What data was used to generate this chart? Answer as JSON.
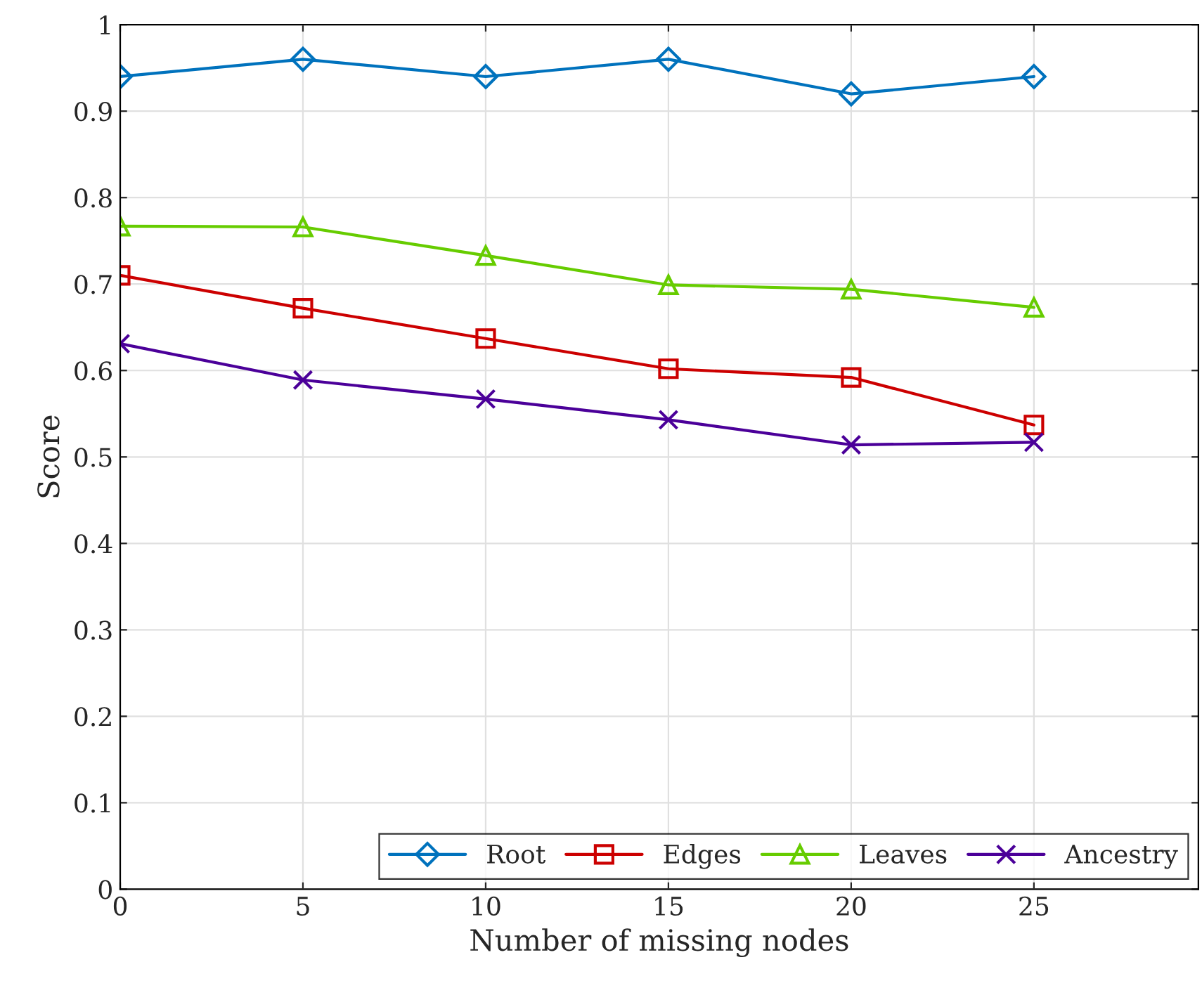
{
  "chart_data": {
    "type": "line",
    "xlabel": "Number of missing nodes",
    "ylabel": "Score",
    "x": [
      0,
      5,
      10,
      15,
      20,
      25
    ],
    "series": [
      {
        "name": "Root",
        "color": "#0072bd",
        "marker": "diamond",
        "values": [
          0.94,
          0.96,
          0.94,
          0.96,
          0.92,
          0.94
        ]
      },
      {
        "name": "Edges",
        "color": "#cc0000",
        "marker": "square",
        "values": [
          0.71,
          0.672,
          0.637,
          0.602,
          0.592,
          0.537
        ]
      },
      {
        "name": "Leaves",
        "color": "#66cc00",
        "marker": "triangle",
        "values": [
          0.767,
          0.766,
          0.733,
          0.699,
          0.694,
          0.673
        ]
      },
      {
        "name": "Ancestry",
        "color": "#4b0099",
        "marker": "cross",
        "values": [
          0.631,
          0.589,
          0.567,
          0.543,
          0.514,
          0.517
        ]
      }
    ],
    "xlim": [
      0,
      29.5
    ],
    "xticks": [
      0,
      5,
      10,
      15,
      20,
      25
    ],
    "ylim": [
      0,
      1
    ],
    "yticks": [
      0,
      0.1,
      0.2,
      0.3,
      0.4,
      0.5,
      0.6,
      0.7,
      0.8,
      0.9,
      1
    ],
    "grid": true,
    "legend": "bottom right",
    "line_style": "solid"
  }
}
